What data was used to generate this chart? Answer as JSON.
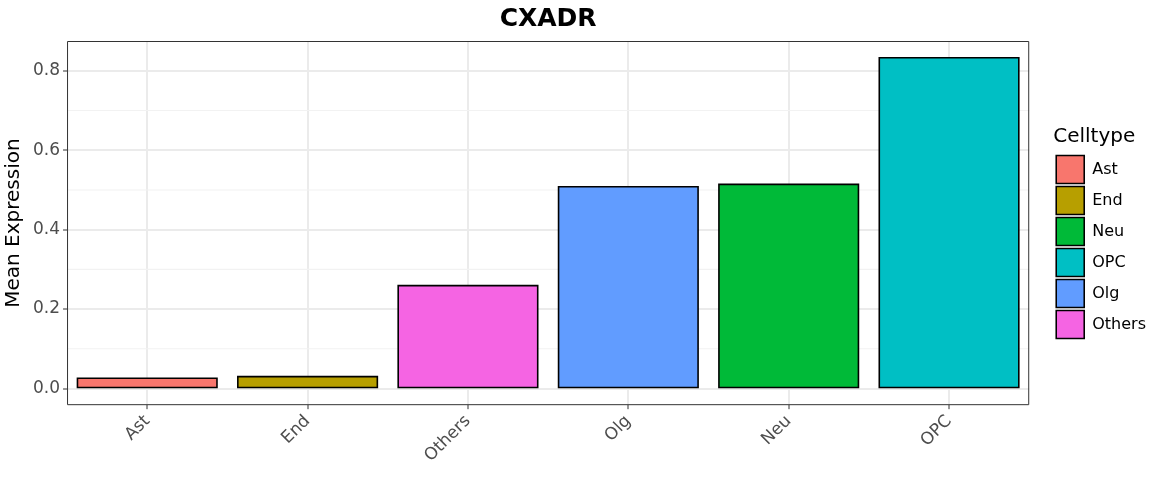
{
  "chart_data": {
    "type": "bar",
    "title": "CXADR",
    "ylabel": "Mean Expression",
    "legend_title": "Celltype",
    "categories": [
      "Ast",
      "End",
      "Others",
      "Olg",
      "Neu",
      "OPC"
    ],
    "series": [
      {
        "name": "Ast",
        "color": "#f8766d",
        "values": [
          0.026,
          null,
          null,
          null,
          null,
          null
        ]
      },
      {
        "name": "End",
        "color": "#b79f00",
        "values": [
          null,
          0.03,
          null,
          null,
          null,
          null
        ]
      },
      {
        "name": "Neu",
        "color": "#00ba38",
        "values": [
          null,
          null,
          null,
          null,
          0.514,
          null
        ]
      },
      {
        "name": "OPC",
        "color": "#00bfc4",
        "values": [
          null,
          null,
          null,
          null,
          null,
          0.833
        ]
      },
      {
        "name": "Olg",
        "color": "#619cff",
        "values": [
          null,
          null,
          null,
          0.508,
          null,
          null
        ]
      },
      {
        "name": "Others",
        "color": "#f564e3",
        "values": [
          null,
          null,
          0.259,
          null,
          null,
          null
        ]
      }
    ],
    "ylim": [
      -0.042,
      0.875
    ],
    "yticks": [
      {
        "value": 0,
        "label": "0.0"
      },
      0.2,
      0.4,
      0.6,
      0.8
    ],
    "grid": true,
    "legend": "right"
  }
}
